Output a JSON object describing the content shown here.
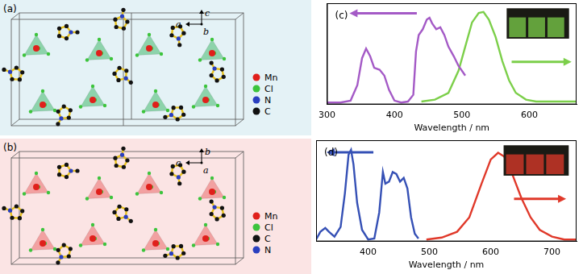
{
  "structures": [
    {
      "label": "(a)",
      "axes": {
        "horizontal": "a",
        "vertical": "c",
        "depth": "b"
      },
      "legend": [
        {
          "label": "Mn",
          "color": "#e0201b"
        },
        {
          "label": "Cl",
          "color": "#3cc43c"
        },
        {
          "label": "N",
          "color": "#2a3fbf"
        },
        {
          "label": "C",
          "color": "#111111"
        }
      ]
    },
    {
      "label": "(b)",
      "axes": {
        "horizontal": "c",
        "vertical": "b",
        "depth": "a"
      },
      "legend": [
        {
          "label": "Mn",
          "color": "#e0201b"
        },
        {
          "label": "Cl",
          "color": "#3cc43c"
        },
        {
          "label": "C",
          "color": "#111111"
        },
        {
          "label": "N",
          "color": "#2a3fbf"
        }
      ]
    }
  ],
  "chart_data": [
    {
      "type": "line",
      "panel_label": "(c)",
      "x_label": "Wavelength / nm",
      "xlim": [
        300,
        670
      ],
      "xticks": [
        300,
        400,
        500,
        600
      ],
      "ylim": [
        0,
        1.05
      ],
      "grid": false,
      "tick_labels": "x",
      "series": [
        {
          "color": "#a45ac6",
          "x": [
            300,
            320,
            335,
            345,
            352,
            358,
            364,
            370,
            378,
            385,
            392,
            400,
            410,
            420,
            428,
            432,
            436,
            442,
            448,
            452,
            456,
            462,
            468,
            474,
            480,
            488,
            495,
            505
          ],
          "values": [
            0.02,
            0.02,
            0.04,
            0.2,
            0.48,
            0.58,
            0.5,
            0.38,
            0.36,
            0.3,
            0.15,
            0.04,
            0.02,
            0.03,
            0.1,
            0.55,
            0.72,
            0.78,
            0.88,
            0.9,
            0.84,
            0.78,
            0.8,
            0.72,
            0.6,
            0.5,
            0.4,
            0.3
          ]
        },
        {
          "color": "#7ccf4a",
          "x": [
            440,
            460,
            480,
            495,
            505,
            515,
            525,
            532,
            540,
            550,
            560,
            570,
            580,
            595,
            610,
            640,
            670
          ],
          "values": [
            0.03,
            0.05,
            0.12,
            0.35,
            0.6,
            0.85,
            0.95,
            0.96,
            0.88,
            0.7,
            0.45,
            0.25,
            0.12,
            0.05,
            0.03,
            0.03,
            0.03
          ]
        }
      ]
    },
    {
      "type": "line",
      "panel_label": "(d)",
      "x_label": "Wavelength / nm",
      "xlim": [
        315,
        740
      ],
      "xticks": [
        400,
        500,
        600,
        700
      ],
      "ylim": [
        0,
        1.05
      ],
      "grid": false,
      "tick_labels": "x",
      "series": [
        {
          "color": "#3550b5",
          "x": [
            315,
            322,
            330,
            336,
            345,
            355,
            362,
            368,
            372,
            376,
            382,
            390,
            400,
            410,
            418,
            424,
            428,
            434,
            440,
            446,
            452,
            458,
            464,
            470,
            476,
            482
          ],
          "values": [
            0.02,
            0.1,
            0.14,
            0.1,
            0.05,
            0.15,
            0.5,
            0.9,
            0.95,
            0.8,
            0.4,
            0.12,
            0.02,
            0.03,
            0.3,
            0.72,
            0.6,
            0.62,
            0.72,
            0.7,
            0.62,
            0.66,
            0.55,
            0.25,
            0.08,
            0.03
          ]
        },
        {
          "color": "#e0392a",
          "x": [
            495,
            520,
            545,
            565,
            585,
            600,
            612,
            622,
            635,
            650,
            665,
            680,
            700,
            720,
            740
          ],
          "values": [
            0.02,
            0.04,
            0.1,
            0.25,
            0.6,
            0.85,
            0.92,
            0.88,
            0.7,
            0.45,
            0.25,
            0.12,
            0.05,
            0.02,
            0.02
          ]
        }
      ]
    }
  ]
}
